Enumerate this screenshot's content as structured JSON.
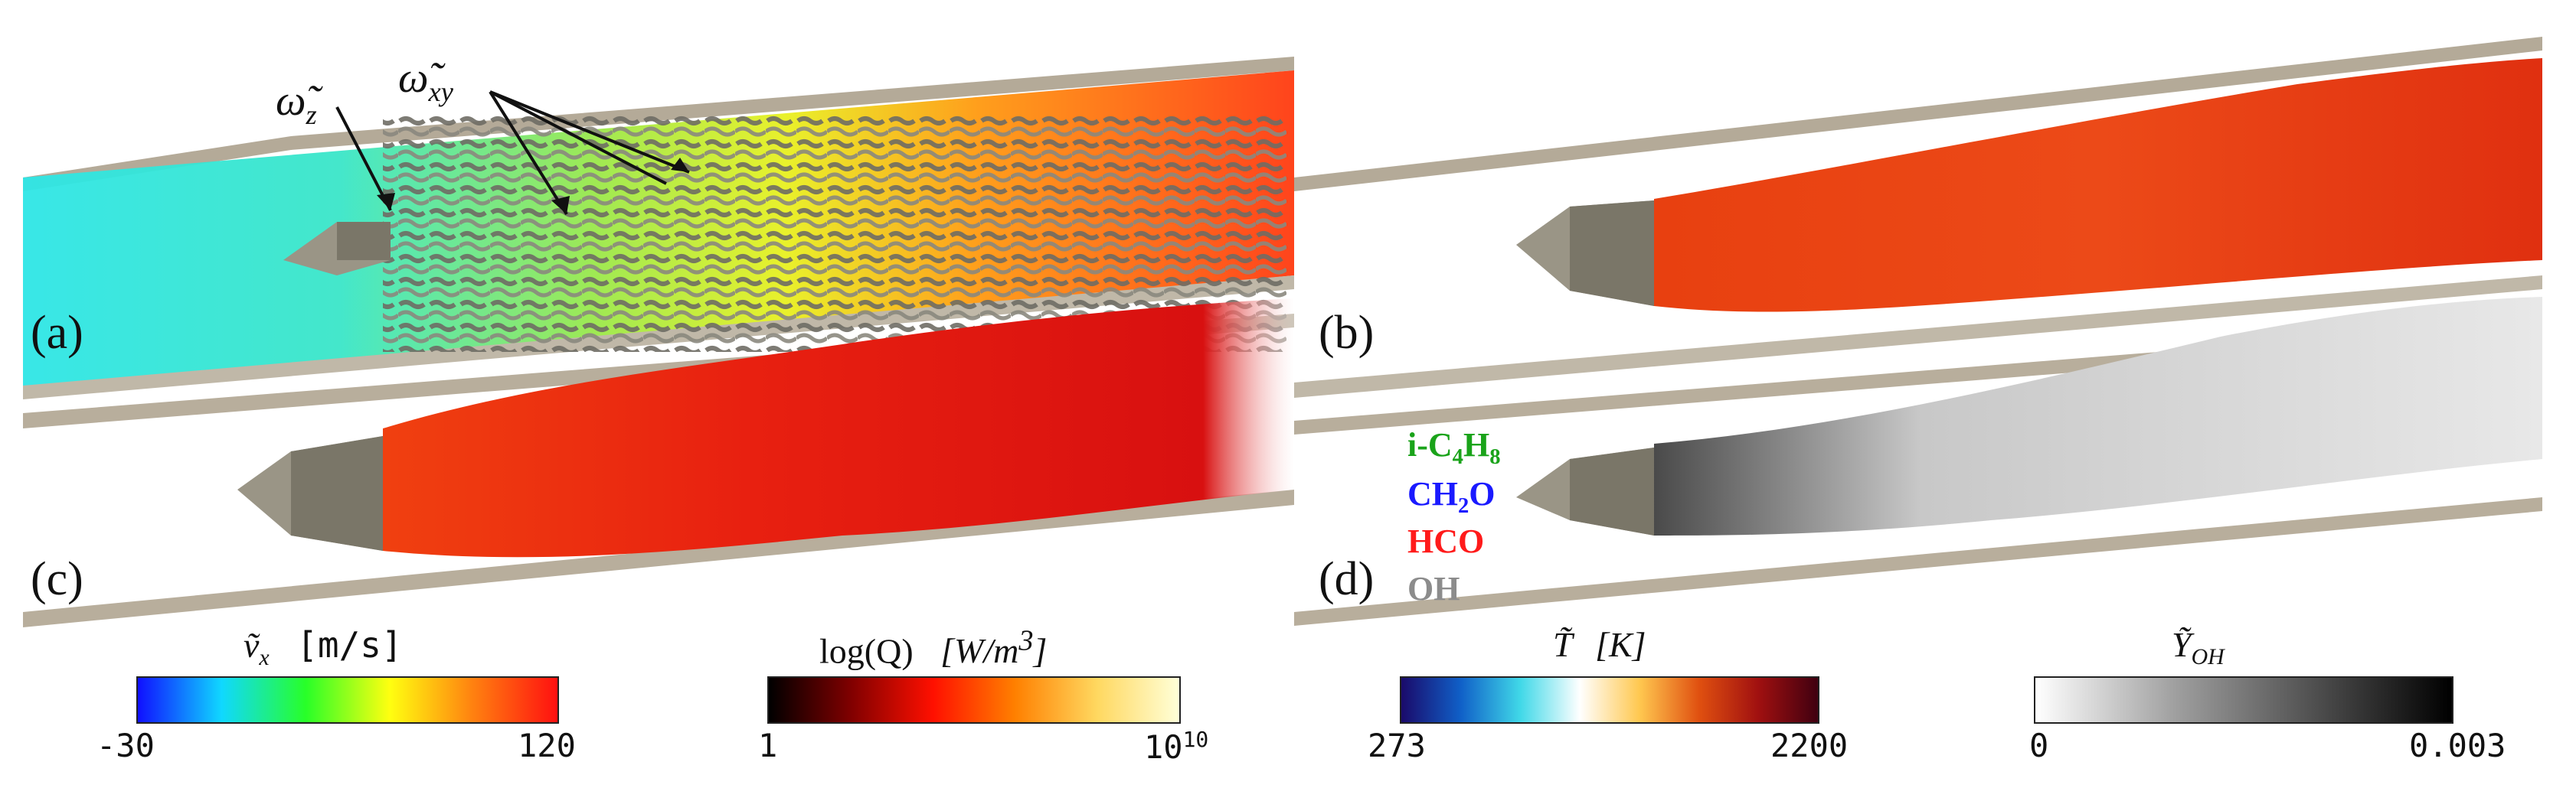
{
  "panels": {
    "a": "(a)",
    "b": "(b)",
    "c": "(c)",
    "d": "(d)"
  },
  "annotations": {
    "omega_z": "ω̃",
    "omega_z_sub": "z",
    "omega_xy": "ω̃",
    "omega_xy_sub": "xy"
  },
  "species": [
    {
      "text": "i-C",
      "sub1": "4",
      "mid": "H",
      "sub2": "8",
      "color": "#1aa31a"
    },
    {
      "text": "CH",
      "sub1": "2",
      "mid": "O",
      "sub2": "",
      "color": "#1a1aff"
    },
    {
      "text": "HCO",
      "sub1": "",
      "mid": "",
      "sub2": "",
      "color": "#ff1a1a"
    },
    {
      "text": "OH",
      "sub1": "",
      "mid": "",
      "sub2": "",
      "color": "#8c8c8c"
    }
  ],
  "colorbars": {
    "vx": {
      "title_sym": "ṽ",
      "title_sub": "x",
      "title_unit": "[m/s]",
      "min": "-30",
      "max": "120",
      "stops": [
        "#1010ff",
        "#10d8ff",
        "#28ff28",
        "#ffff10",
        "#ff8010",
        "#ff1010"
      ]
    },
    "logQ": {
      "title": "log(Q)",
      "unit": "[W/m",
      "unit_sup": "3",
      "unit_end": "]",
      "min": "1",
      "max": "10",
      "max_sup": "10",
      "stops": [
        "#000000",
        "#800000",
        "#ff1000",
        "#ff8000",
        "#ffd860",
        "#ffffd8"
      ]
    },
    "T": {
      "title_sym": "T̃",
      "unit": "[K]",
      "min": "273",
      "max": "2200",
      "stops": [
        "#1a0a6a",
        "#1060c8",
        "#40d8e8",
        "#ffffff",
        "#ffc850",
        "#e05010",
        "#a01010",
        "#400010"
      ]
    },
    "YOH": {
      "title_sym": "Ỹ",
      "title_sub": "OH",
      "min": "0",
      "max": "0.003",
      "stops": [
        "#ffffff",
        "#a0a0a0",
        "#505050",
        "#000000"
      ]
    }
  }
}
